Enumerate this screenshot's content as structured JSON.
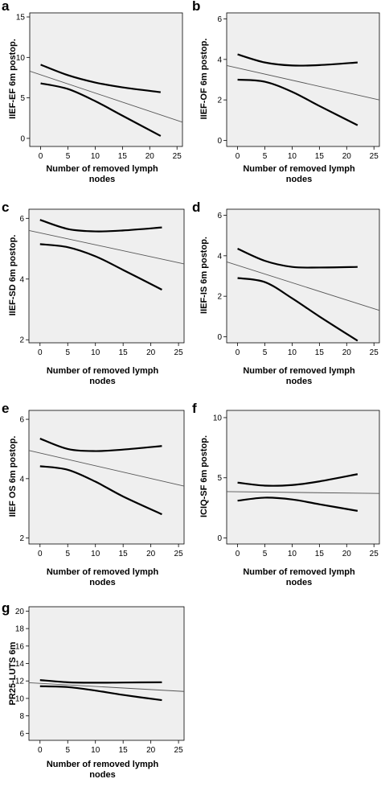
{
  "chart_data": [
    {
      "panel": "a",
      "type": "line",
      "ylabel": "IIEF-EF 6m postop.",
      "xlabel": [
        "Number of removed lymph",
        "nodes"
      ],
      "xlim": [
        -2,
        26
      ],
      "ylim": [
        -1,
        15.5
      ],
      "xticks": [
        0,
        5,
        10,
        15,
        20,
        25
      ],
      "yticks": [
        0,
        5,
        10,
        15
      ],
      "series": [
        {
          "role": "upper-ci",
          "points": [
            [
              0,
              9.1
            ],
            [
              5,
              7.8
            ],
            [
              10,
              6.9
            ],
            [
              15,
              6.3
            ],
            [
              22,
              5.7
            ]
          ]
        },
        {
          "role": "lower-ci",
          "points": [
            [
              0,
              6.8
            ],
            [
              5,
              6.1
            ],
            [
              10,
              4.6
            ],
            [
              15,
              2.8
            ],
            [
              22,
              0.3
            ]
          ]
        },
        {
          "role": "regression",
          "points": [
            [
              -2,
              8.3
            ],
            [
              26,
              2.0
            ]
          ]
        }
      ]
    },
    {
      "panel": "b",
      "type": "line",
      "ylabel": "IIEF-OF 6m postop.",
      "xlabel": [
        "Number of removed lymph",
        "nodes"
      ],
      "xlim": [
        -2,
        26
      ],
      "ylim": [
        -0.3,
        6.3
      ],
      "xticks": [
        0,
        5,
        10,
        15,
        20,
        25
      ],
      "yticks": [
        0,
        2,
        4,
        6
      ],
      "series": [
        {
          "role": "upper-ci",
          "points": [
            [
              0,
              4.25
            ],
            [
              5,
              3.85
            ],
            [
              10,
              3.7
            ],
            [
              15,
              3.72
            ],
            [
              22,
              3.85
            ]
          ]
        },
        {
          "role": "lower-ci",
          "points": [
            [
              0,
              3.0
            ],
            [
              5,
              2.9
            ],
            [
              10,
              2.4
            ],
            [
              15,
              1.7
            ],
            [
              22,
              0.75
            ]
          ]
        },
        {
          "role": "regression",
          "points": [
            [
              -2,
              3.7
            ],
            [
              26,
              2.0
            ]
          ]
        }
      ]
    },
    {
      "panel": "c",
      "type": "line",
      "ylabel": "IIEF-SD 6m postop.",
      "xlabel": [
        "Number of removed lymph",
        "nodes"
      ],
      "xlim": [
        -2,
        26
      ],
      "ylim": [
        1.9,
        6.3
      ],
      "xticks": [
        0,
        5,
        10,
        15,
        20,
        25
      ],
      "yticks": [
        2,
        4,
        6
      ],
      "series": [
        {
          "role": "upper-ci",
          "points": [
            [
              0,
              5.95
            ],
            [
              5,
              5.65
            ],
            [
              10,
              5.57
            ],
            [
              15,
              5.6
            ],
            [
              22,
              5.7
            ]
          ]
        },
        {
          "role": "lower-ci",
          "points": [
            [
              0,
              5.15
            ],
            [
              5,
              5.05
            ],
            [
              10,
              4.75
            ],
            [
              15,
              4.3
            ],
            [
              22,
              3.65
            ]
          ]
        },
        {
          "role": "regression",
          "points": [
            [
              -2,
              5.6
            ],
            [
              26,
              4.5
            ]
          ]
        }
      ]
    },
    {
      "panel": "d",
      "type": "line",
      "ylabel": "IIEF-IS 6m postop.",
      "xlabel": [
        "Number of removed lymph",
        "nodes"
      ],
      "xlim": [
        -2,
        26
      ],
      "ylim": [
        -0.3,
        6.3
      ],
      "xticks": [
        0,
        5,
        10,
        15,
        20,
        25
      ],
      "yticks": [
        0,
        2,
        4,
        6
      ],
      "series": [
        {
          "role": "upper-ci",
          "points": [
            [
              0,
              4.35
            ],
            [
              5,
              3.75
            ],
            [
              10,
              3.45
            ],
            [
              15,
              3.42
            ],
            [
              22,
              3.45
            ]
          ]
        },
        {
          "role": "lower-ci",
          "points": [
            [
              0,
              2.9
            ],
            [
              5,
              2.7
            ],
            [
              10,
              1.9
            ],
            [
              15,
              1.0
            ],
            [
              22,
              -0.2
            ]
          ]
        },
        {
          "role": "regression",
          "points": [
            [
              -2,
              3.7
            ],
            [
              26,
              1.3
            ]
          ]
        }
      ]
    },
    {
      "panel": "e",
      "type": "line",
      "ylabel": "IIEF OS 6m postop.",
      "xlabel": [
        "Number of removed lymph",
        "nodes"
      ],
      "xlim": [
        -2,
        26
      ],
      "ylim": [
        1.8,
        6.3
      ],
      "xticks": [
        0,
        5,
        10,
        15,
        20,
        25
      ],
      "yticks": [
        2,
        4,
        6
      ],
      "series": [
        {
          "role": "upper-ci",
          "points": [
            [
              0,
              5.35
            ],
            [
              5,
              5.0
            ],
            [
              10,
              4.93
            ],
            [
              15,
              4.98
            ],
            [
              22,
              5.1
            ]
          ]
        },
        {
          "role": "lower-ci",
          "points": [
            [
              0,
              4.42
            ],
            [
              5,
              4.3
            ],
            [
              10,
              3.9
            ],
            [
              15,
              3.4
            ],
            [
              22,
              2.8
            ]
          ]
        },
        {
          "role": "regression",
          "points": [
            [
              -2,
              4.95
            ],
            [
              26,
              3.75
            ]
          ]
        }
      ]
    },
    {
      "panel": "f",
      "type": "line",
      "ylabel": "ICIQ-SF 6m postop.",
      "xlabel": [
        "Number of removed lymph",
        "nodes"
      ],
      "xlim": [
        -2,
        26
      ],
      "ylim": [
        -0.5,
        10.6
      ],
      "xticks": [
        0,
        5,
        10,
        15,
        20,
        25
      ],
      "yticks": [
        0,
        5,
        10
      ],
      "series": [
        {
          "role": "upper-ci",
          "points": [
            [
              0,
              4.6
            ],
            [
              5,
              4.35
            ],
            [
              10,
              4.4
            ],
            [
              15,
              4.7
            ],
            [
              22,
              5.3
            ]
          ]
        },
        {
          "role": "lower-ci",
          "points": [
            [
              0,
              3.1
            ],
            [
              5,
              3.35
            ],
            [
              10,
              3.2
            ],
            [
              15,
              2.8
            ],
            [
              22,
              2.25
            ]
          ]
        },
        {
          "role": "regression",
          "points": [
            [
              -2,
              3.85
            ],
            [
              26,
              3.7
            ]
          ]
        }
      ]
    },
    {
      "panel": "g",
      "type": "line",
      "ylabel": "PR25-LUTS 6m",
      "xlabel": [
        "Number of removed lymph",
        "nodes"
      ],
      "xlim": [
        -2,
        26
      ],
      "ylim": [
        5.2,
        20.5
      ],
      "xticks": [
        0,
        5,
        10,
        15,
        20,
        25
      ],
      "yticks": [
        6,
        8,
        10,
        12,
        14,
        16,
        18,
        20
      ],
      "series": [
        {
          "role": "upper-ci",
          "points": [
            [
              0,
              12.1
            ],
            [
              5,
              11.85
            ],
            [
              10,
              11.8
            ],
            [
              15,
              11.82
            ],
            [
              22,
              11.85
            ]
          ]
        },
        {
          "role": "lower-ci",
          "points": [
            [
              0,
              11.4
            ],
            [
              5,
              11.3
            ],
            [
              10,
              10.9
            ],
            [
              15,
              10.4
            ],
            [
              22,
              9.8
            ]
          ]
        },
        {
          "role": "regression",
          "points": [
            [
              -2,
              11.8
            ],
            [
              26,
              10.8
            ]
          ]
        }
      ]
    }
  ]
}
